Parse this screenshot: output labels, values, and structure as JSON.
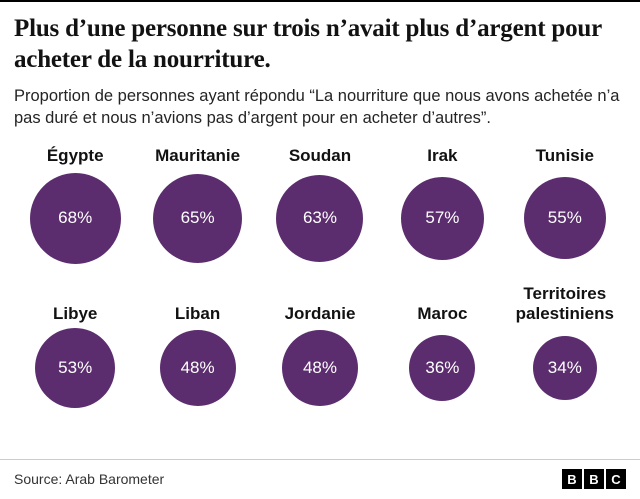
{
  "header": {
    "title": "Plus d’une personne sur trois n’avait plus d’argent pour acheter de la nourriture.",
    "subtitle": "Proportion de personnes ayant répondu “La nourriture que nous avons achetée n’a pas duré et nous n’avions pas d’argent pour en acheter d’autres”."
  },
  "chart_data": {
    "type": "bubble",
    "title": "Plus d’une personne sur trois n’avait plus d’argent pour acheter de la nourriture.",
    "categories": [
      "Égypte",
      "Mauritanie",
      "Soudan",
      "Irak",
      "Tunisie",
      "Libye",
      "Liban",
      "Jordanie",
      "Maroc",
      "Territoires palestiniens"
    ],
    "values": [
      68,
      65,
      63,
      57,
      55,
      53,
      48,
      48,
      36,
      34
    ],
    "unit": "%",
    "legend": false,
    "layout": {
      "columns": 5,
      "rows": 2,
      "sizing": "circle area proportional to value"
    },
    "colors": {
      "circle": "#5c2d6e",
      "value_text": "#ffffff",
      "label_text": "#121212"
    }
  },
  "footer": {
    "source": "Source: Arab Barometer",
    "logo": [
      "B",
      "B",
      "C"
    ]
  }
}
